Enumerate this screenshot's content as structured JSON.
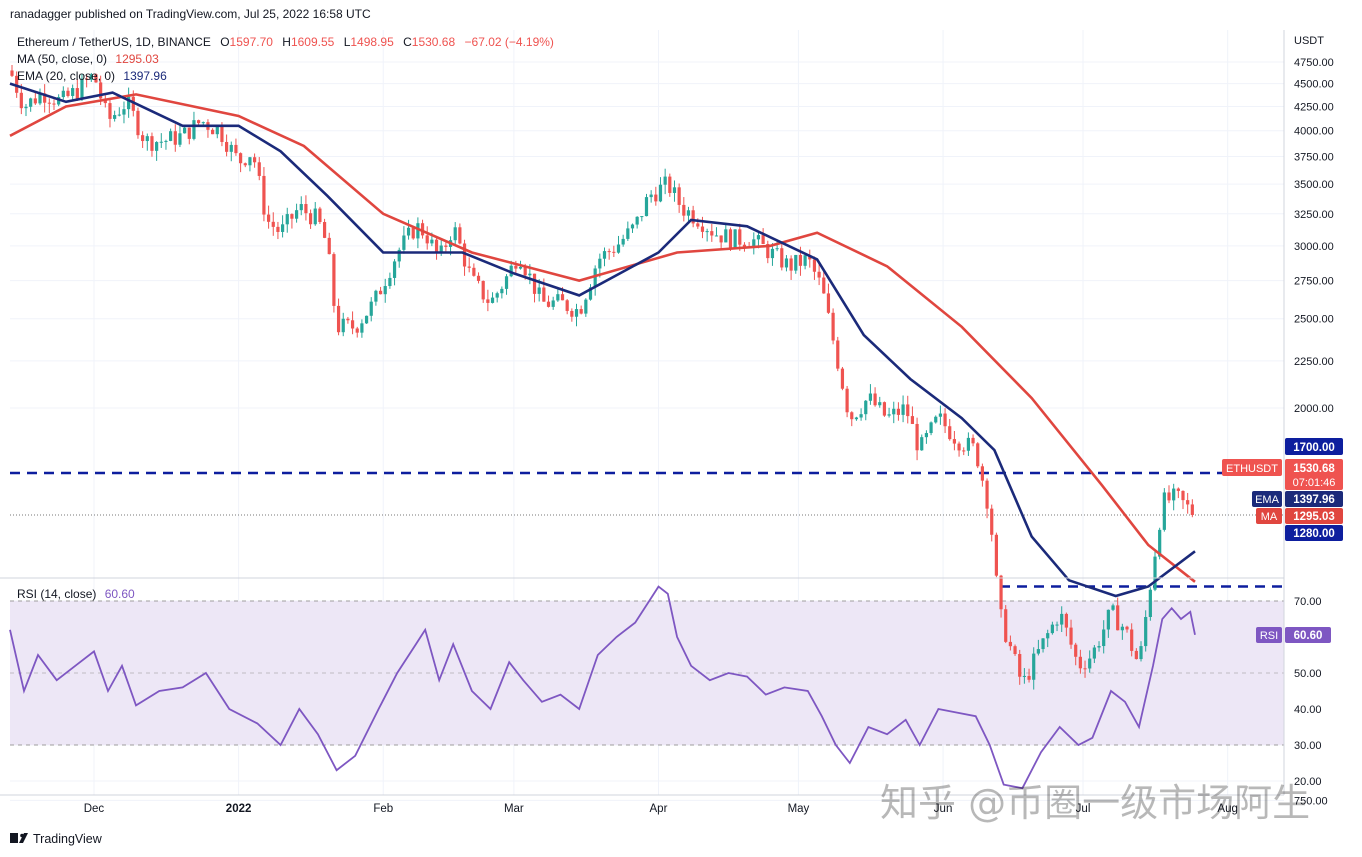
{
  "header": {
    "published": "ranadagger published on TradingView.com, Jul 25, 2022 16:58 UTC"
  },
  "legend": {
    "symbol": "Ethereum / TetherUS, 1D, BINANCE",
    "o_label": "O",
    "o": "1597.70",
    "h_label": "H",
    "h": "1609.55",
    "l_label": "L",
    "l": "1498.95",
    "c_label": "C",
    "c": "1530.68",
    "change": "−67.02 (−4.19%)",
    "ma": "MA (50, close, 0)",
    "ma_val": "1295.03",
    "ema": "EMA (20, close, 0)",
    "ema_val": "1397.96",
    "rsi": "RSI (14, close)",
    "rsi_val": "60.60"
  },
  "axis": {
    "currency": "USDT",
    "price_ticks": [
      "4750.00",
      "4500.00",
      "4250.00",
      "4000.00",
      "3750.00",
      "3500.00",
      "3250.00",
      "3000.00",
      "2750.00",
      "2500.00",
      "2250.00",
      "2000.00",
      "750.00"
    ],
    "rsi_ticks": [
      "70.00",
      "50.00",
      "40.00",
      "30.00",
      "20.00"
    ],
    "time_ticks": [
      "Dec",
      "2022",
      "Feb",
      "Mar",
      "Apr",
      "May",
      "Jun",
      "Jul",
      "Aug"
    ]
  },
  "badges": {
    "resistance": "1700.00",
    "symbol": "ETHUSDT",
    "price": "1530.68",
    "countdown": "07:01:46",
    "ema_label": "EMA",
    "ema_val": "1397.96",
    "ma_label": "MA",
    "ma_val": "1295.03",
    "support": "1280.00",
    "rsi_label": "RSI",
    "rsi_val": "60.60"
  },
  "footer": {
    "brand": "TradingView"
  },
  "watermark": "知乎 @币圈一级市场阿生",
  "colors": {
    "up": "#26a69a",
    "down": "#ef5350",
    "ema": "#1b2a7a",
    "ma": "#e0463f",
    "rsi": "#7e57c2",
    "level": "#0d1e9e",
    "rsi_band": "#ede7f6"
  },
  "chart_data": {
    "type": "candlestick",
    "symbol": "Ethereum / TetherUS",
    "interval": "1D",
    "exchange": "BINANCE",
    "y_scale": "log",
    "ylim": [
      720,
      4900
    ],
    "horizontal_levels": [
      1700,
      1280
    ],
    "last": {
      "open": 1597.7,
      "high": 1609.55,
      "low": 1498.95,
      "close": 1530.68
    },
    "price_path": [
      [
        "2021-11-13",
        4650
      ],
      [
        "2021-11-16",
        4250
      ],
      [
        "2021-11-20",
        4400
      ],
      [
        "2021-11-24",
        4300
      ],
      [
        "2021-11-28",
        4450
      ],
      [
        "2021-12-01",
        4600
      ],
      [
        "2021-12-04",
        4100
      ],
      [
        "2021-12-08",
        4300
      ],
      [
        "2021-12-12",
        3900
      ],
      [
        "2021-12-16",
        3900
      ],
      [
        "2021-12-20",
        3950
      ],
      [
        "2021-12-24",
        4100
      ],
      [
        "2021-12-28",
        4000
      ],
      [
        "2022-01-01",
        3700
      ],
      [
        "2022-01-04",
        3800
      ],
      [
        "2022-01-07",
        3200
      ],
      [
        "2022-01-10",
        3100
      ],
      [
        "2022-01-14",
        3300
      ],
      [
        "2022-01-18",
        3200
      ],
      [
        "2022-01-20",
        3000
      ],
      [
        "2022-01-22",
        2450
      ],
      [
        "2022-01-26",
        2450
      ],
      [
        "2022-01-30",
        2600
      ],
      [
        "2022-02-04",
        2950
      ],
      [
        "2022-02-08",
        3150
      ],
      [
        "2022-02-10",
        3100
      ],
      [
        "2022-02-13",
        2900
      ],
      [
        "2022-02-16",
        3150
      ],
      [
        "2022-02-20",
        2750
      ],
      [
        "2022-02-24",
        2600
      ],
      [
        "2022-02-28",
        2800
      ],
      [
        "2022-03-02",
        2950
      ],
      [
        "2022-03-07",
        2600
      ],
      [
        "2022-03-11",
        2600
      ],
      [
        "2022-03-15",
        2550
      ],
      [
        "2022-03-19",
        2900
      ],
      [
        "2022-03-23",
        3000
      ],
      [
        "2022-03-27",
        3150
      ],
      [
        "2022-03-30",
        3400
      ],
      [
        "2022-04-03",
        3500
      ],
      [
        "2022-04-06",
        3300
      ],
      [
        "2022-04-10",
        3200
      ],
      [
        "2022-04-13",
        3100
      ],
      [
        "2022-04-17",
        3050
      ],
      [
        "2022-04-21",
        3050
      ],
      [
        "2022-04-25",
        2950
      ],
      [
        "2022-04-29",
        2850
      ],
      [
        "2022-05-03",
        2900
      ],
      [
        "2022-05-06",
        2700
      ],
      [
        "2022-05-09",
        2300
      ],
      [
        "2022-05-12",
        1950
      ],
      [
        "2022-05-16",
        2050
      ],
      [
        "2022-05-20",
        1950
      ],
      [
        "2022-05-24",
        2000
      ],
      [
        "2022-05-27",
        1800
      ],
      [
        "2022-05-31",
        1950
      ],
      [
        "2022-06-04",
        1850
      ],
      [
        "2022-06-08",
        1800
      ],
      [
        "2022-06-11",
        1550
      ],
      [
        "2022-06-13",
        1200
      ],
      [
        "2022-06-18",
        1000
      ],
      [
        "2022-06-22",
        1100
      ],
      [
        "2022-06-26",
        1200
      ],
      [
        "2022-06-30",
        1050
      ],
      [
        "2022-07-03",
        1080
      ],
      [
        "2022-07-07",
        1200
      ],
      [
        "2022-07-10",
        1150
      ],
      [
        "2022-07-13",
        1050
      ],
      [
        "2022-07-16",
        1350
      ],
      [
        "2022-07-18",
        1580
      ],
      [
        "2022-07-21",
        1600
      ],
      [
        "2022-07-25",
        1530.68
      ]
    ],
    "ema20": [
      [
        "2021-11-13",
        4500
      ],
      [
        "2021-11-25",
        4300
      ],
      [
        "2021-12-05",
        4400
      ],
      [
        "2021-12-20",
        4050
      ],
      [
        "2022-01-01",
        4050
      ],
      [
        "2022-01-10",
        3800
      ],
      [
        "2022-01-20",
        3400
      ],
      [
        "2022-02-01",
        2950
      ],
      [
        "2022-02-10",
        2950
      ],
      [
        "2022-02-18",
        2950
      ],
      [
        "2022-03-01",
        2800
      ],
      [
        "2022-03-15",
        2650
      ],
      [
        "2022-04-01",
        2950
      ],
      [
        "2022-04-08",
        3200
      ],
      [
        "2022-04-20",
        3150
      ],
      [
        "2022-05-05",
        2900
      ],
      [
        "2022-05-15",
        2400
      ],
      [
        "2022-05-25",
        2150
      ],
      [
        "2022-06-05",
        1950
      ],
      [
        "2022-06-12",
        1800
      ],
      [
        "2022-06-20",
        1450
      ],
      [
        "2022-06-28",
        1300
      ],
      [
        "2022-07-08",
        1250
      ],
      [
        "2022-07-15",
        1280
      ],
      [
        "2022-07-25",
        1397.96
      ]
    ],
    "ma50": [
      [
        "2021-11-13",
        3950
      ],
      [
        "2021-11-25",
        4250
      ],
      [
        "2021-12-10",
        4380
      ],
      [
        "2022-01-01",
        4150
      ],
      [
        "2022-01-15",
        3850
      ],
      [
        "2022-02-01",
        3250
      ],
      [
        "2022-02-20",
        2950
      ],
      [
        "2022-03-15",
        2750
      ],
      [
        "2022-04-05",
        2950
      ],
      [
        "2022-04-25",
        3000
      ],
      [
        "2022-05-05",
        3100
      ],
      [
        "2022-05-20",
        2850
      ],
      [
        "2022-06-05",
        2450
      ],
      [
        "2022-06-20",
        2050
      ],
      [
        "2022-07-05",
        1650
      ],
      [
        "2022-07-15",
        1420
      ],
      [
        "2022-07-25",
        1295.03
      ]
    ],
    "rsi": {
      "ylim": [
        15,
        75
      ],
      "bands": [
        30,
        70
      ],
      "points": [
        [
          "2021-11-13",
          62
        ],
        [
          "2021-11-16",
          45
        ],
        [
          "2021-11-19",
          55
        ],
        [
          "2021-11-23",
          48
        ],
        [
          "2021-11-27",
          52
        ],
        [
          "2021-12-01",
          56
        ],
        [
          "2021-12-04",
          45
        ],
        [
          "2021-12-07",
          52
        ],
        [
          "2021-12-10",
          41
        ],
        [
          "2021-12-15",
          45
        ],
        [
          "2021-12-20",
          46
        ],
        [
          "2021-12-25",
          50
        ],
        [
          "2021-12-30",
          40
        ],
        [
          "2022-01-05",
          36
        ],
        [
          "2022-01-10",
          30
        ],
        [
          "2022-01-14",
          40
        ],
        [
          "2022-01-18",
          33
        ],
        [
          "2022-01-22",
          23
        ],
        [
          "2022-01-26",
          27
        ],
        [
          "2022-01-31",
          40
        ],
        [
          "2022-02-04",
          50
        ],
        [
          "2022-02-08",
          58
        ],
        [
          "2022-02-10",
          62
        ],
        [
          "2022-02-13",
          48
        ],
        [
          "2022-02-16",
          58
        ],
        [
          "2022-02-20",
          45
        ],
        [
          "2022-02-24",
          40
        ],
        [
          "2022-02-28",
          53
        ],
        [
          "2022-03-03",
          48
        ],
        [
          "2022-03-07",
          42
        ],
        [
          "2022-03-11",
          44
        ],
        [
          "2022-03-15",
          40
        ],
        [
          "2022-03-19",
          55
        ],
        [
          "2022-03-23",
          60
        ],
        [
          "2022-03-27",
          64
        ],
        [
          "2022-03-30",
          70
        ],
        [
          "2022-04-01",
          74
        ],
        [
          "2022-04-03",
          72
        ],
        [
          "2022-04-05",
          60
        ],
        [
          "2022-04-08",
          52
        ],
        [
          "2022-04-12",
          48
        ],
        [
          "2022-04-16",
          50
        ],
        [
          "2022-04-20",
          49
        ],
        [
          "2022-04-24",
          44
        ],
        [
          "2022-04-28",
          46
        ],
        [
          "2022-05-03",
          45
        ],
        [
          "2022-05-06",
          38
        ],
        [
          "2022-05-09",
          30
        ],
        [
          "2022-05-12",
          25
        ],
        [
          "2022-05-16",
          35
        ],
        [
          "2022-05-20",
          33
        ],
        [
          "2022-05-24",
          37
        ],
        [
          "2022-05-27",
          30
        ],
        [
          "2022-05-31",
          40
        ],
        [
          "2022-06-04",
          39
        ],
        [
          "2022-06-08",
          38
        ],
        [
          "2022-06-11",
          30
        ],
        [
          "2022-06-14",
          19
        ],
        [
          "2022-06-18",
          18
        ],
        [
          "2022-06-22",
          28
        ],
        [
          "2022-06-26",
          35
        ],
        [
          "2022-06-30",
          30
        ],
        [
          "2022-07-03",
          32
        ],
        [
          "2022-07-07",
          45
        ],
        [
          "2022-07-10",
          42
        ],
        [
          "2022-07-13",
          35
        ],
        [
          "2022-07-16",
          52
        ],
        [
          "2022-07-18",
          65
        ],
        [
          "2022-07-20",
          68
        ],
        [
          "2022-07-22",
          65
        ],
        [
          "2022-07-24",
          67
        ],
        [
          "2022-07-25",
          60.6
        ]
      ]
    }
  }
}
